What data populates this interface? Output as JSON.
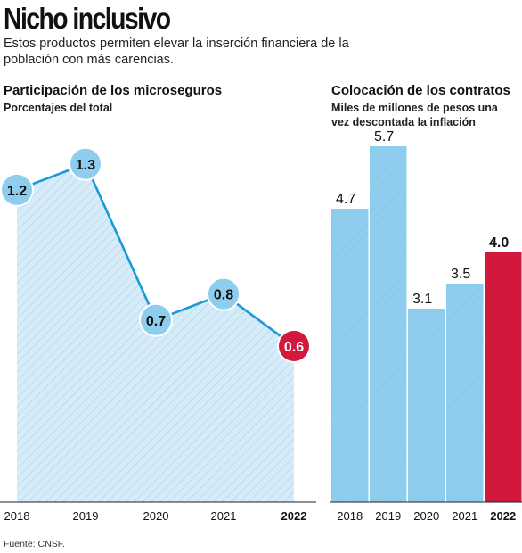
{
  "header": {
    "title": "Nicho inclusivo",
    "subtitle": "Estos productos permiten elevar la inserción financiera de la población con más carencias."
  },
  "source": "Fuente: CNSF.",
  "colors": {
    "line": "#1a9ad6",
    "area": "#d6ecf8",
    "point": "#8fcdef",
    "bar": "#8fcdef",
    "highlight": "#d3183e",
    "hatch": "#7fb6d6"
  },
  "chart_data": [
    {
      "type": "area",
      "title": "Participación de los microseguros",
      "subtitle": "Porcentajes del total",
      "categories": [
        "2018",
        "2019",
        "2020",
        "2021",
        "2022"
      ],
      "values": [
        1.2,
        1.3,
        0.7,
        0.8,
        0.6
      ],
      "value_labels": [
        "1.2",
        "1.3",
        "0.7",
        "0.8",
        "0.6"
      ],
      "highlight": "2022",
      "ylim": [
        0,
        1.45
      ],
      "grid": false
    },
    {
      "type": "bar",
      "title": "Colocación de los contratos",
      "subtitle": "Miles de millones de pesos una vez descontada la inflación",
      "categories": [
        "2018",
        "2019",
        "2020",
        "2021",
        "2022"
      ],
      "values": [
        4.7,
        5.7,
        3.1,
        3.5,
        4.0
      ],
      "value_labels": [
        "4.7",
        "5.7",
        "3.1",
        "3.5",
        "4.0"
      ],
      "highlight": "2022",
      "ylim": [
        0,
        6.0
      ],
      "grid": false
    }
  ]
}
